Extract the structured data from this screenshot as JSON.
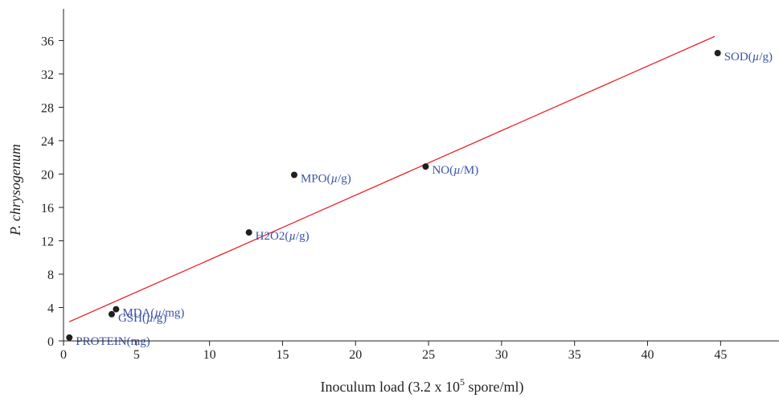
{
  "chart_data": {
    "type": "scatter",
    "title": "",
    "xlabel": {
      "main": "Inoculum load (3.2 x 10",
      "sup": "5",
      "rest": " spore/ml)"
    },
    "ylabel": "P. chrysogenum",
    "xlim": [
      0,
      49
    ],
    "ylim": [
      0,
      39.8
    ],
    "xticks": [
      0,
      5,
      10,
      15,
      20,
      25,
      30,
      35,
      40,
      45
    ],
    "yticks": [
      0,
      4,
      8,
      12,
      16,
      20,
      24,
      28,
      32,
      36
    ],
    "grid": false,
    "legend": "none",
    "points": [
      {
        "label": "PROTEIN(mg)",
        "x": 0.4,
        "y": 0.4
      },
      {
        "label": "GSH(µ/g)",
        "x": 3.3,
        "y": 3.2
      },
      {
        "label": "MDA(µ/mg)",
        "x": 3.6,
        "y": 3.8
      },
      {
        "label": "H2O2(µ/g)",
        "x": 12.7,
        "y": 13.0
      },
      {
        "label": "MPO(µ/g)",
        "x": 15.8,
        "y": 19.9
      },
      {
        "label": "NO(µ/M)",
        "x": 24.8,
        "y": 20.9
      },
      {
        "label": "SOD(µ/g)",
        "x": 44.8,
        "y": 34.5
      }
    ],
    "fit_line": {
      "x": [
        0.4,
        44.6
      ],
      "y": [
        2.3,
        36.5
      ]
    },
    "colors": {
      "points": "#231f20",
      "fit_line": "#e8262b",
      "point_labels": "#3a53a4",
      "axes": "#231f20"
    }
  }
}
